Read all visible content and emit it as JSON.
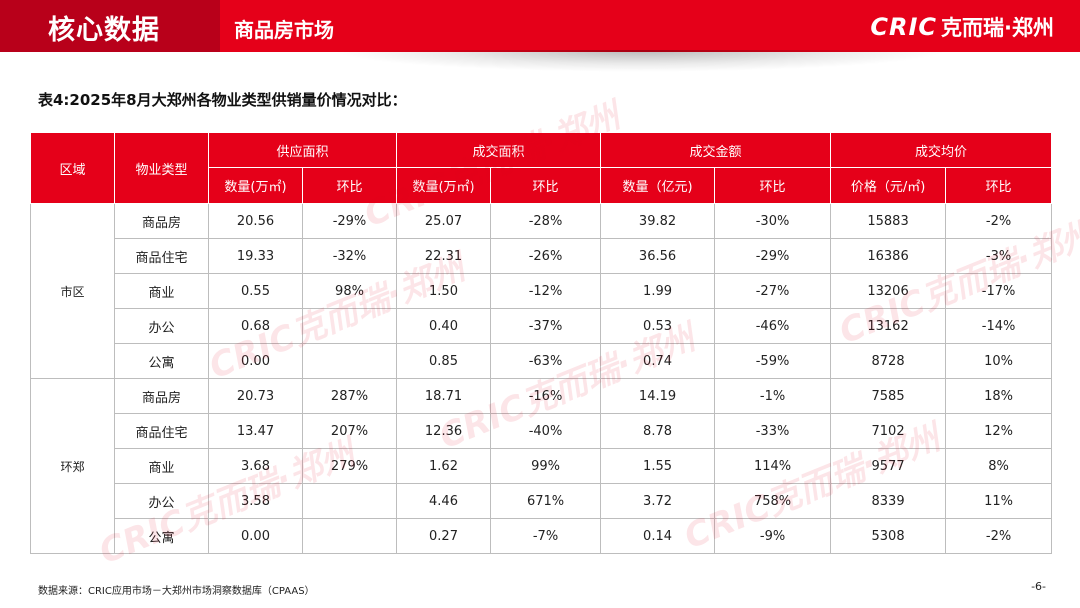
{
  "header": {
    "core_title": "核心数据",
    "section_title": "商品房市场",
    "logo_en": "CRIC",
    "logo_cn": "克而瑞·郑州",
    "bg_color": "#e50019",
    "left_bg_color": "#b8001a"
  },
  "table_caption": "表4:2025年8月大郑州各物业类型供销量价情况对比：",
  "table": {
    "headers": {
      "region": "区域",
      "type": "物业类型",
      "supply": "供应面积",
      "deal_area": "成交面积",
      "deal_amount": "成交金额",
      "avg_price": "成交均价",
      "supply_qty": "数量(万㎡)",
      "supply_mom": "环比",
      "deal_area_qty": "数量(万㎡)",
      "deal_area_mom": "环比",
      "amount_qty": "数量（亿元)",
      "amount_mom": "环比",
      "price": "价格（元/㎡)",
      "price_mom": "环比"
    },
    "groups": [
      {
        "region": "市区",
        "rows": [
          {
            "type": "商品房",
            "supply": "20.56",
            "supply_mom": "-29%",
            "area": "25.07",
            "area_mom": "-28%",
            "amount": "39.82",
            "amount_mom": "-30%",
            "price": "15883",
            "price_mom": "-2%"
          },
          {
            "type": "商品住宅",
            "supply": "19.33",
            "supply_mom": "-32%",
            "area": "22.31",
            "area_mom": "-26%",
            "amount": "36.56",
            "amount_mom": "-29%",
            "price": "16386",
            "price_mom": "-3%"
          },
          {
            "type": "商业",
            "supply": "0.55",
            "supply_mom": "98%",
            "area": "1.50",
            "area_mom": "-12%",
            "amount": "1.99",
            "amount_mom": "-27%",
            "price": "13206",
            "price_mom": "-17%"
          },
          {
            "type": "办公",
            "supply": "0.68",
            "supply_mom": "",
            "area": "0.40",
            "area_mom": "-37%",
            "amount": "0.53",
            "amount_mom": "-46%",
            "price": "13162",
            "price_mom": "-14%"
          },
          {
            "type": "公寓",
            "supply": "0.00",
            "supply_mom": "",
            "area": "0.85",
            "area_mom": "-63%",
            "amount": "0.74",
            "amount_mom": "-59%",
            "price": "8728",
            "price_mom": "10%"
          }
        ]
      },
      {
        "region": "环郑",
        "rows": [
          {
            "type": "商品房",
            "supply": "20.73",
            "supply_mom": "287%",
            "area": "18.71",
            "area_mom": "-16%",
            "amount": "14.19",
            "amount_mom": "-1%",
            "price": "7585",
            "price_mom": "18%"
          },
          {
            "type": "商品住宅",
            "supply": "13.47",
            "supply_mom": "207%",
            "area": "12.36",
            "area_mom": "-40%",
            "amount": "8.78",
            "amount_mom": "-33%",
            "price": "7102",
            "price_mom": "12%"
          },
          {
            "type": "商业",
            "supply": "3.68",
            "supply_mom": "279%",
            "area": "1.62",
            "area_mom": "99%",
            "amount": "1.55",
            "amount_mom": "114%",
            "price": "9577",
            "price_mom": "8%"
          },
          {
            "type": "办公",
            "supply": "3.58",
            "supply_mom": "",
            "area": "4.46",
            "area_mom": "671%",
            "amount": "3.72",
            "amount_mom": "758%",
            "price": "8339",
            "price_mom": "11%"
          },
          {
            "type": "公寓",
            "supply": "0.00",
            "supply_mom": "",
            "area": "0.27",
            "area_mom": "-7%",
            "amount": "0.14",
            "amount_mom": "-9%",
            "price": "5308",
            "price_mom": "-2%"
          }
        ]
      }
    ]
  },
  "watermark": "CRIC克而瑞·郑州",
  "source": "数据来源：CRIC应用市场－大郑州市场洞察数据库（CPAAS）",
  "page_number": "-6-",
  "colors": {
    "negative": "#3f9a3f",
    "positive": "#e0102a",
    "header_red": "#e50019"
  }
}
